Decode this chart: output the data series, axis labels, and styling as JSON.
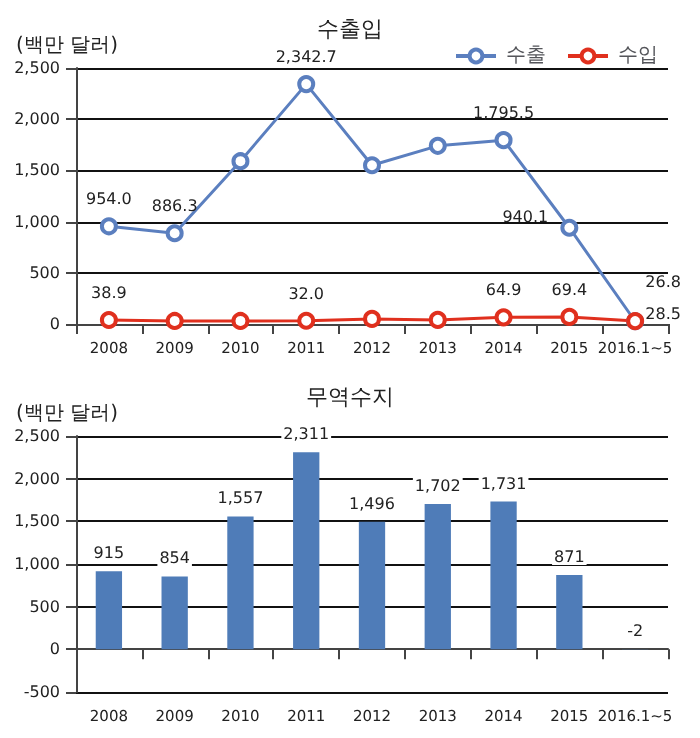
{
  "chart_data": [
    {
      "type": "line",
      "title": "수출입",
      "ylabel": "(백만 달러)",
      "categories": [
        "2008",
        "2009",
        "2010",
        "2011",
        "2012",
        "2013",
        "2014",
        "2015",
        "2016.1~5"
      ],
      "series": [
        {
          "name": "수출",
          "color": "#5b7fbf",
          "values": [
            954.0,
            886.3,
            1590,
            2342.7,
            1550,
            1740,
            1795.5,
            940.1,
            26.8
          ],
          "value_labels": [
            "954.0",
            "886.3",
            null,
            "2,342.7",
            null,
            null,
            "1,795.5",
            "940.1",
            "26.8"
          ]
        },
        {
          "name": "수입",
          "color": "#e0301e",
          "values": [
            38.9,
            30,
            30,
            32.0,
            50,
            40,
            64.9,
            69.4,
            28.5
          ],
          "value_labels": [
            "38.9",
            null,
            null,
            "32.0",
            null,
            null,
            "64.9",
            "69.4",
            "28.5"
          ]
        }
      ],
      "ylim": [
        0,
        2500
      ],
      "yticks": [
        0,
        500,
        {
          "value": 1000,
          "label": "1,000"
        },
        {
          "value": 1500,
          "label": "1,500"
        },
        {
          "value": 2000,
          "label": "2,000"
        },
        {
          "value": 2500,
          "label": "2,500"
        }
      ],
      "grid": "y",
      "legend": "top right",
      "marker": "circle",
      "line_style": "solid"
    },
    {
      "type": "bar",
      "title": "무역수지",
      "ylabel": "(백만 달러)",
      "categories": [
        "2008",
        "2009",
        "2010",
        "2011",
        "2012",
        "2013",
        "2014",
        "2015",
        "2016.1~5"
      ],
      "values": [
        915,
        854,
        1557,
        2311,
        1496,
        1702,
        1731,
        871,
        -2
      ],
      "color": "#4f7cb8",
      "value_labels": [
        "915",
        "854",
        "1,557",
        "2,311",
        "1,496",
        "1,702",
        "1,731",
        "871",
        "-2"
      ],
      "ylim": [
        -500,
        2500
      ],
      "yticks": [
        -500,
        0,
        500,
        {
          "value": 1000,
          "label": "1,000"
        },
        {
          "value": 1500,
          "label": "1,500"
        },
        {
          "value": 2000,
          "label": "2,000"
        },
        {
          "value": 2500,
          "label": "2,500"
        }
      ],
      "grid": "y",
      "legend": false
    }
  ]
}
